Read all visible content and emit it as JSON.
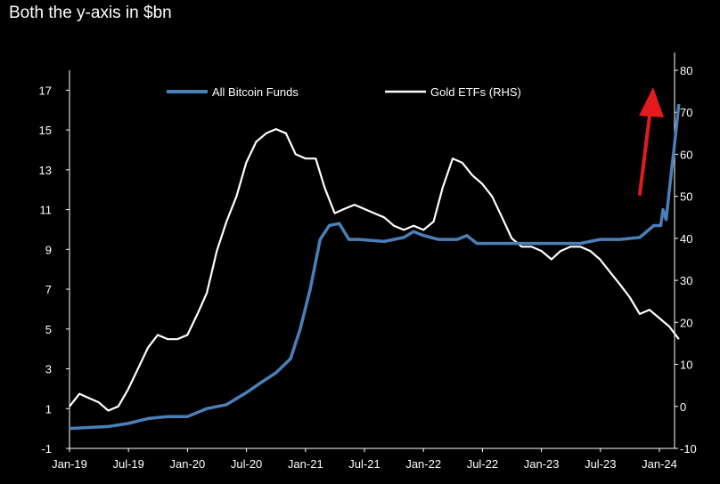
{
  "chart_data": {
    "type": "line",
    "title": "Both the y-axis in $bn",
    "x_tick_labels": [
      "Jan-19",
      "Jul-19",
      "Jan-20",
      "Jul-20",
      "Jan-21",
      "Jul-21",
      "Jan-22",
      "Jul-22",
      "Jan-23",
      "Jul-23",
      "Jan-24"
    ],
    "y_left": {
      "ylim": [
        -1,
        18
      ],
      "ticks": [
        "-1",
        "1",
        "3",
        "5",
        "7",
        "9",
        "11",
        "13",
        "15",
        "17"
      ]
    },
    "y_right": {
      "ylim": [
        -10,
        80
      ],
      "ticks": [
        "-10",
        "0",
        "10",
        "20",
        "30",
        "40",
        "50",
        "60",
        "70",
        "80"
      ]
    },
    "grid": false,
    "legend_position": "top",
    "series": [
      {
        "name": "All Bitcoin Funds",
        "axis": "left",
        "color": "#4a7fb8",
        "points": [
          [
            "2019-01-01",
            0.0
          ],
          [
            "2019-03-01",
            0.05
          ],
          [
            "2019-05-01",
            0.1
          ],
          [
            "2019-07-01",
            0.25
          ],
          [
            "2019-09-01",
            0.5
          ],
          [
            "2019-11-01",
            0.6
          ],
          [
            "2020-01-01",
            0.6
          ],
          [
            "2020-03-01",
            1.0
          ],
          [
            "2020-05-01",
            1.2
          ],
          [
            "2020-07-01",
            1.8
          ],
          [
            "2020-08-15",
            2.3
          ],
          [
            "2020-10-01",
            2.8
          ],
          [
            "2020-11-15",
            3.5
          ],
          [
            "2020-12-15",
            5.0
          ],
          [
            "2021-01-15",
            7.0
          ],
          [
            "2021-02-15",
            9.5
          ],
          [
            "2021-03-15",
            10.2
          ],
          [
            "2021-04-15",
            10.3
          ],
          [
            "2021-05-15",
            9.5
          ],
          [
            "2021-06-15",
            9.5
          ],
          [
            "2021-09-01",
            9.4
          ],
          [
            "2021-11-01",
            9.6
          ],
          [
            "2021-12-01",
            9.9
          ],
          [
            "2022-01-01",
            9.7
          ],
          [
            "2022-02-15",
            9.5
          ],
          [
            "2022-04-15",
            9.5
          ],
          [
            "2022-05-15",
            9.7
          ],
          [
            "2022-06-15",
            9.3
          ],
          [
            "2022-09-01",
            9.3
          ],
          [
            "2022-12-01",
            9.3
          ],
          [
            "2023-03-01",
            9.3
          ],
          [
            "2023-05-01",
            9.3
          ],
          [
            "2023-07-01",
            9.5
          ],
          [
            "2023-09-01",
            9.5
          ],
          [
            "2023-11-01",
            9.6
          ],
          [
            "2023-12-15",
            10.2
          ],
          [
            "2024-01-05",
            10.2
          ],
          [
            "2024-01-12",
            11.0
          ],
          [
            "2024-01-22",
            10.5
          ],
          [
            "2024-02-01",
            12.0
          ],
          [
            "2024-02-15",
            14.0
          ],
          [
            "2024-03-01",
            16.3
          ]
        ]
      },
      {
        "name": "Gold ETFs (RHS)",
        "axis": "right",
        "color": "#ffffff",
        "points": [
          [
            "2019-01-01",
            0
          ],
          [
            "2019-02-01",
            3
          ],
          [
            "2019-03-01",
            2
          ],
          [
            "2019-04-01",
            1
          ],
          [
            "2019-05-01",
            -1
          ],
          [
            "2019-06-01",
            0
          ],
          [
            "2019-07-01",
            4
          ],
          [
            "2019-08-01",
            9
          ],
          [
            "2019-09-01",
            14
          ],
          [
            "2019-10-01",
            17
          ],
          [
            "2019-11-01",
            16
          ],
          [
            "2019-12-01",
            16
          ],
          [
            "2020-01-01",
            17
          ],
          [
            "2020-02-01",
            22
          ],
          [
            "2020-03-01",
            27
          ],
          [
            "2020-04-01",
            37
          ],
          [
            "2020-05-01",
            44
          ],
          [
            "2020-06-01",
            50
          ],
          [
            "2020-07-01",
            58
          ],
          [
            "2020-08-01",
            63
          ],
          [
            "2020-09-01",
            65
          ],
          [
            "2020-10-01",
            66
          ],
          [
            "2020-11-01",
            65
          ],
          [
            "2020-12-01",
            60
          ],
          [
            "2021-01-01",
            59
          ],
          [
            "2021-02-01",
            59
          ],
          [
            "2021-03-01",
            52
          ],
          [
            "2021-04-01",
            46
          ],
          [
            "2021-05-01",
            47
          ],
          [
            "2021-06-01",
            48
          ],
          [
            "2021-07-01",
            47
          ],
          [
            "2021-08-01",
            46
          ],
          [
            "2021-09-01",
            45
          ],
          [
            "2021-10-01",
            43
          ],
          [
            "2021-11-01",
            42
          ],
          [
            "2021-12-01",
            43
          ],
          [
            "2022-01-01",
            42
          ],
          [
            "2022-02-01",
            44
          ],
          [
            "2022-03-01",
            52
          ],
          [
            "2022-04-01",
            59
          ],
          [
            "2022-05-01",
            58
          ],
          [
            "2022-06-01",
            55
          ],
          [
            "2022-07-01",
            53
          ],
          [
            "2022-08-01",
            50
          ],
          [
            "2022-09-01",
            45
          ],
          [
            "2022-10-01",
            40
          ],
          [
            "2022-11-01",
            38
          ],
          [
            "2022-12-01",
            38
          ],
          [
            "2023-01-01",
            37
          ],
          [
            "2023-02-01",
            35
          ],
          [
            "2023-03-01",
            37
          ],
          [
            "2023-04-01",
            38
          ],
          [
            "2023-05-01",
            38
          ],
          [
            "2023-06-01",
            37
          ],
          [
            "2023-07-01",
            35
          ],
          [
            "2023-08-01",
            32
          ],
          [
            "2023-09-01",
            29
          ],
          [
            "2023-10-01",
            26
          ],
          [
            "2023-11-01",
            22
          ],
          [
            "2023-12-01",
            23
          ],
          [
            "2024-01-01",
            21
          ],
          [
            "2024-02-01",
            19
          ],
          [
            "2024-03-01",
            16
          ]
        ]
      }
    ]
  },
  "annotation": {
    "arrow_color": "#e51b1b"
  }
}
